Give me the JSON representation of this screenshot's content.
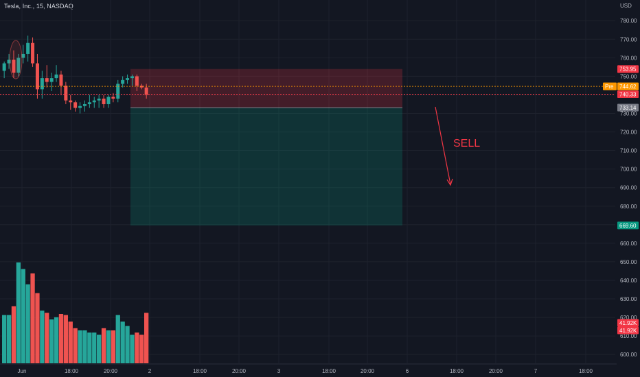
{
  "header": {
    "title": "Tesla, Inc., 15, NASDAQ"
  },
  "price_axis": {
    "currency": "USD",
    "ticks": [
      "780.00",
      "770.00",
      "760.00",
      "750.00",
      "740.00",
      "730.00",
      "720.00",
      "710.00",
      "700.00",
      "690.00",
      "680.00",
      "670.00",
      "660.00",
      "650.00",
      "640.00",
      "630.00",
      "620.00",
      "610.00",
      "600.00"
    ]
  },
  "badges": {
    "stop": {
      "value": "753.95",
      "price": 753.95,
      "color": "#f23645"
    },
    "pre_label": "Pre",
    "pre": {
      "value": "744.62",
      "price": 744.62,
      "color": "#ff9800"
    },
    "last": {
      "value": "740.33",
      "price": 740.33,
      "color": "#f23645"
    },
    "entry": {
      "value": "733.14",
      "price": 733.14,
      "color": "#787b86"
    },
    "target": {
      "value": "669.60",
      "price": 669.6,
      "color": "#089981"
    },
    "vol1": {
      "value": "41.92K",
      "color": "#f23645"
    },
    "vol2": {
      "value": "41.92K",
      "color": "#f23645"
    }
  },
  "annotation": {
    "text": "SELL",
    "color": "#f23645"
  },
  "time_axis": [
    "Jun",
    "18:00",
    "20:00",
    "2",
    "18:00",
    "20:00",
    "3",
    "18:00",
    "20:00",
    "6",
    "18:00",
    "20:00",
    "7",
    "18:00"
  ],
  "colors": {
    "up": "#26a69a",
    "down": "#ef5350",
    "background": "#131722",
    "grid": "#1e222d",
    "risk_zone": "#f23645",
    "reward_zone": "#089981"
  },
  "chart_data": {
    "type": "candlestick",
    "title": "Tesla, Inc., 15, NASDAQ",
    "yrange": [
      596,
      786
    ],
    "ylabel": "USD",
    "candles": [
      {
        "o": 753,
        "h": 758,
        "l": 749,
        "c": 757
      },
      {
        "o": 757,
        "h": 762,
        "l": 754,
        "c": 759
      },
      {
        "o": 759,
        "h": 764,
        "l": 749,
        "c": 752
      },
      {
        "o": 752,
        "h": 762,
        "l": 750,
        "c": 760
      },
      {
        "o": 760,
        "h": 767,
        "l": 757,
        "c": 762
      },
      {
        "o": 762,
        "h": 772,
        "l": 758,
        "c": 768
      },
      {
        "o": 768,
        "h": 771,
        "l": 755,
        "c": 757
      },
      {
        "o": 757,
        "h": 762,
        "l": 738,
        "c": 743
      },
      {
        "o": 743,
        "h": 753,
        "l": 738,
        "c": 749
      },
      {
        "o": 749,
        "h": 756,
        "l": 744,
        "c": 747
      },
      {
        "o": 747,
        "h": 752,
        "l": 742,
        "c": 749
      },
      {
        "o": 749,
        "h": 756,
        "l": 747,
        "c": 751
      },
      {
        "o": 751,
        "h": 753,
        "l": 740,
        "c": 745
      },
      {
        "o": 745,
        "h": 747,
        "l": 735,
        "c": 737
      },
      {
        "o": 737,
        "h": 740,
        "l": 732,
        "c": 736
      },
      {
        "o": 736,
        "h": 737,
        "l": 731,
        "c": 733
      },
      {
        "o": 733,
        "h": 736,
        "l": 730,
        "c": 734
      },
      {
        "o": 734,
        "h": 737,
        "l": 731,
        "c": 735
      },
      {
        "o": 735,
        "h": 740,
        "l": 733,
        "c": 736
      },
      {
        "o": 736,
        "h": 739,
        "l": 733,
        "c": 737
      },
      {
        "o": 737,
        "h": 740,
        "l": 733,
        "c": 738
      },
      {
        "o": 738,
        "h": 740,
        "l": 733,
        "c": 735
      },
      {
        "o": 735,
        "h": 740,
        "l": 733,
        "c": 739
      },
      {
        "o": 739,
        "h": 741,
        "l": 736,
        "c": 738
      },
      {
        "o": 738,
        "h": 748,
        "l": 736,
        "c": 746
      },
      {
        "o": 746,
        "h": 750,
        "l": 744,
        "c": 748
      },
      {
        "o": 748,
        "h": 751,
        "l": 746,
        "c": 749
      },
      {
        "o": 749,
        "h": 751,
        "l": 745,
        "c": 750
      },
      {
        "o": 750,
        "h": 751,
        "l": 742,
        "c": 745
      },
      {
        "o": 745,
        "h": 746,
        "l": 743,
        "c": 744
      },
      {
        "o": 744,
        "h": 746,
        "l": 738,
        "c": 740
      }
    ],
    "volume_scale_max": 100000,
    "volumes": [
      44000,
      44000,
      52000,
      92000,
      86000,
      72000,
      82000,
      64000,
      48000,
      46000,
      40000,
      42000,
      45000,
      44000,
      38000,
      32000,
      30000,
      30000,
      28000,
      28000,
      26000,
      32000,
      30000,
      30000,
      44000,
      38000,
      34000,
      26000,
      28000,
      26000,
      46000
    ],
    "position": {
      "side": "short",
      "entry": 733.14,
      "stop": 753.95,
      "target": 669.6
    },
    "x_labels": [
      "Jun",
      "18:00",
      "20:00",
      "2",
      "18:00",
      "20:00",
      "3",
      "18:00",
      "20:00",
      "6",
      "18:00",
      "20:00",
      "7",
      "18:00"
    ]
  }
}
